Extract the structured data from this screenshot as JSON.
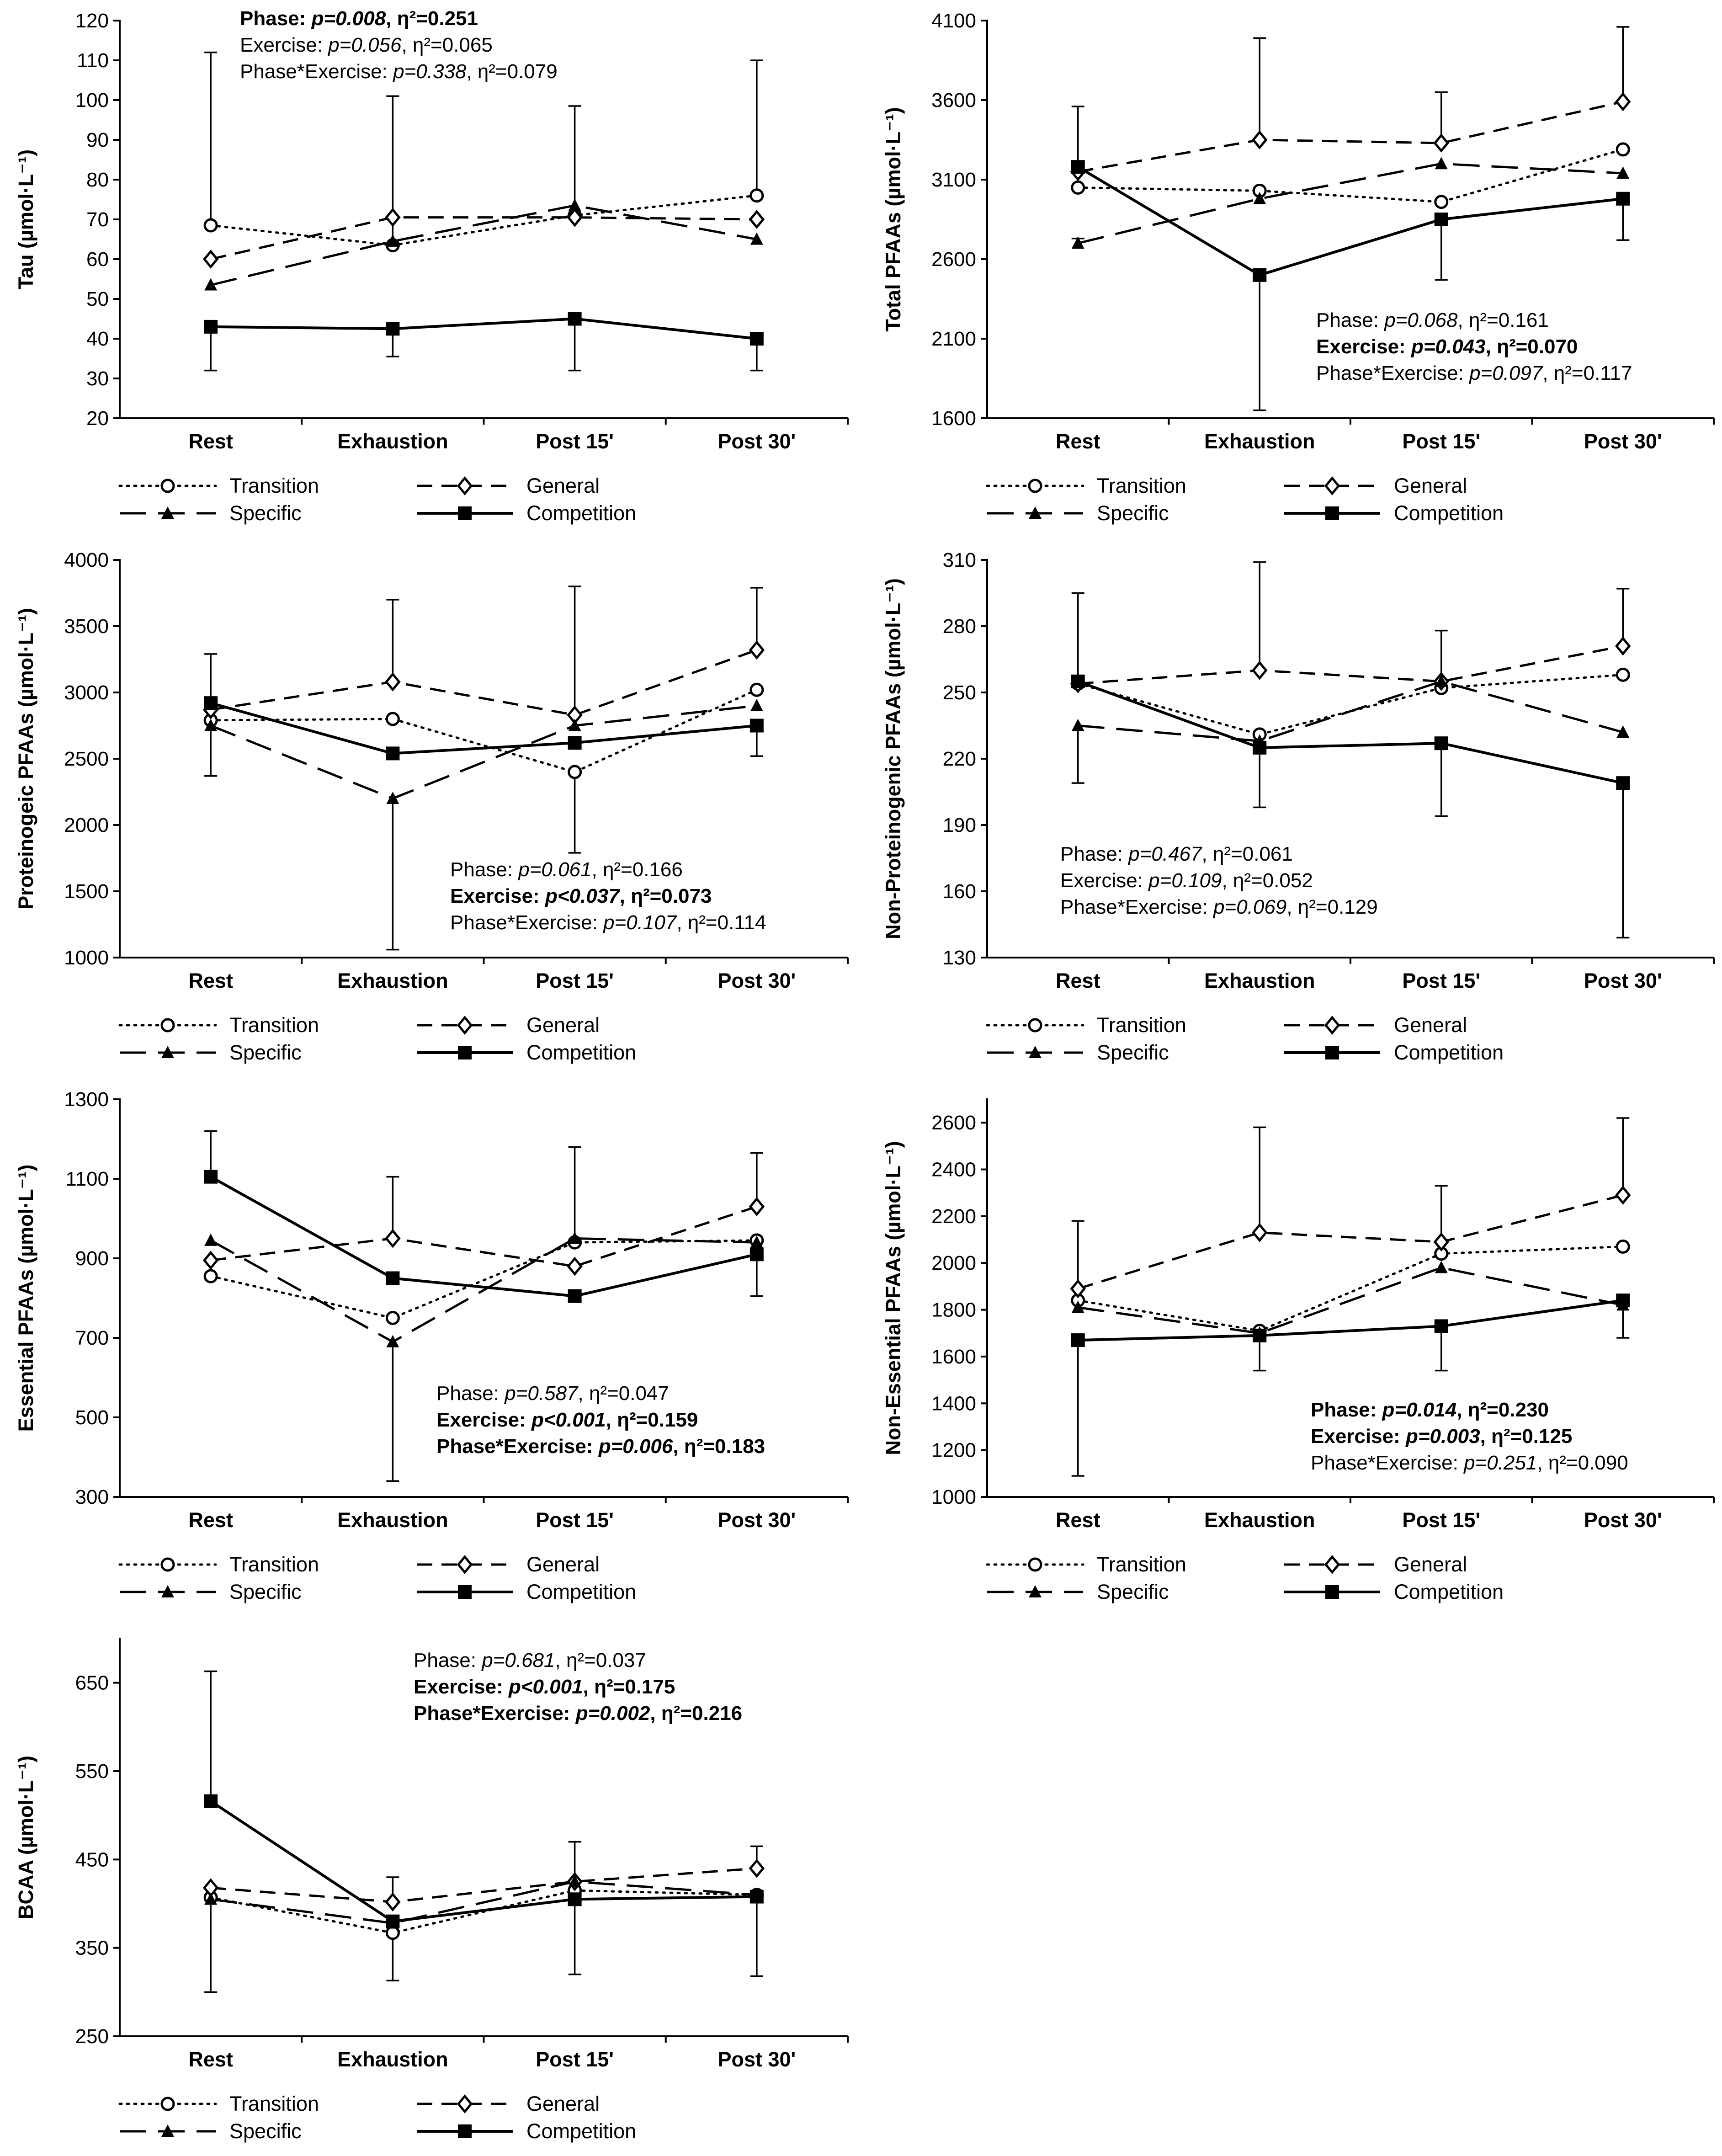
{
  "figure": {
    "categories": [
      "Rest",
      "Exhaustion",
      "Post 15'",
      "Post 30'"
    ],
    "legend": [
      {
        "key": "transition",
        "label": "Transition"
      },
      {
        "key": "general",
        "label": "General"
      },
      {
        "key": "specific",
        "label": "Specific"
      },
      {
        "key": "competition",
        "label": "Competition"
      }
    ],
    "colors": {
      "ink": "#000000",
      "background": "#ffffff"
    }
  },
  "chart_data": [
    {
      "id": "tau",
      "type": "line",
      "ylabel": "Tau (µmol·L⁻¹)",
      "ylim": [
        20,
        120
      ],
      "yticks": [
        20,
        30,
        40,
        50,
        60,
        70,
        80,
        90,
        100,
        110,
        120
      ],
      "categories": [
        "Rest",
        "Exhaustion",
        "Post 15'",
        "Post 30'"
      ],
      "series": [
        {
          "name": "Transition",
          "values": [
            68.5,
            63.5,
            71,
            76
          ]
        },
        {
          "name": "General",
          "values": [
            60,
            70.5,
            70.5,
            70
          ]
        },
        {
          "name": "Specific",
          "values": [
            53.5,
            64.5,
            73.5,
            65
          ]
        },
        {
          "name": "Competition",
          "values": [
            43,
            42.5,
            45,
            40
          ]
        }
      ],
      "error_bars": [
        {
          "series": "Transition",
          "index": 0,
          "value": 112
        },
        {
          "series": "Transition",
          "index": 1,
          "value": 101
        },
        {
          "series": "Transition",
          "index": 2,
          "value": 98.5
        },
        {
          "series": "Transition",
          "index": 3,
          "value": 110
        },
        {
          "series": "Competition",
          "index": 0,
          "value": 32
        },
        {
          "series": "Competition",
          "index": 1,
          "value": 35.5
        },
        {
          "series": "Competition",
          "index": 2,
          "value": 32
        },
        {
          "series": "Competition",
          "index": 3,
          "value": 32
        }
      ],
      "stats": [
        {
          "label": "Phase: ",
          "p": "p=0.008",
          "eta": ", η²=0.251",
          "bold": true
        },
        {
          "label": "Exercise: ",
          "p": "p=0.056",
          "eta": ", η²=0.065",
          "bold": false
        },
        {
          "label": "Phase*Exercise: ",
          "p": "p=0.338",
          "eta": ", η²=0.079",
          "bold": false
        }
      ]
    },
    {
      "id": "total",
      "type": "line",
      "ylabel": "Total PFAAs (µmol·L⁻¹)",
      "ylim": [
        1600,
        4100
      ],
      "yticks": [
        1600,
        2100,
        2600,
        3100,
        3600,
        4100
      ],
      "categories": [
        "Rest",
        "Exhaustion",
        "Post 15'",
        "Post 30'"
      ],
      "series": [
        {
          "name": "Transition",
          "values": [
            3050,
            3030,
            2960,
            3290
          ]
        },
        {
          "name": "General",
          "values": [
            3150,
            3350,
            3330,
            3590
          ]
        },
        {
          "name": "Specific",
          "values": [
            2700,
            2980,
            3200,
            3140
          ]
        },
        {
          "name": "Competition",
          "values": [
            3180,
            2500,
            2850,
            2980
          ]
        }
      ],
      "error_bars": [
        {
          "series": "Competition",
          "index": 0,
          "value": 3560
        },
        {
          "series": "General",
          "index": 1,
          "value": 3990
        },
        {
          "series": "General",
          "index": 2,
          "value": 3650
        },
        {
          "series": "General",
          "index": 3,
          "value": 4060
        },
        {
          "series": "Specific",
          "index": 0,
          "value": 2730
        },
        {
          "series": "Competition",
          "index": 1,
          "value": 1650
        },
        {
          "series": "Competition",
          "index": 2,
          "value": 2470
        },
        {
          "series": "Competition",
          "index": 3,
          "value": 2720
        }
      ],
      "stats": [
        {
          "label": "Phase: ",
          "p": "p=0.068",
          "eta": ", η²=0.161",
          "bold": false
        },
        {
          "label": "Exercise: ",
          "p": "p=0.043",
          "eta": ", η²=0.070",
          "bold": true
        },
        {
          "label": "Phase*Exercise: ",
          "p": "p=0.097",
          "eta": ", η²=0.117",
          "bold": false
        }
      ]
    },
    {
      "id": "proteinogenic",
      "type": "line",
      "ylabel": "Proteinogeic PFAAs (µmol·L⁻¹)",
      "ylim": [
        1000,
        4000
      ],
      "yticks": [
        1000,
        1500,
        2000,
        2500,
        3000,
        3500,
        4000
      ],
      "categories": [
        "Rest",
        "Exhaustion",
        "Post 15'",
        "Post 30'"
      ],
      "series": [
        {
          "name": "Transition",
          "values": [
            2790,
            2800,
            2400,
            3020
          ]
        },
        {
          "name": "General",
          "values": [
            2870,
            3080,
            2830,
            3320
          ]
        },
        {
          "name": "Specific",
          "values": [
            2750,
            2200,
            2750,
            2900
          ]
        },
        {
          "name": "Competition",
          "values": [
            2920,
            2540,
            2620,
            2750
          ]
        }
      ],
      "error_bars": [
        {
          "series": "Competition",
          "index": 0,
          "value": 3290
        },
        {
          "series": "General",
          "index": 1,
          "value": 3700
        },
        {
          "series": "General",
          "index": 2,
          "value": 3800
        },
        {
          "series": "General",
          "index": 3,
          "value": 3790
        },
        {
          "series": "Competition",
          "index": 0,
          "value": 2370
        },
        {
          "series": "Specific",
          "index": 1,
          "value": 1060
        },
        {
          "series": "Transition",
          "index": 2,
          "value": 1790
        },
        {
          "series": "Competition",
          "index": 3,
          "value": 2520
        }
      ],
      "stats": [
        {
          "label": "Phase: ",
          "p": "p=0.061",
          "eta": ", η²=0.166",
          "bold": false
        },
        {
          "label": "Exercise: ",
          "p": "p<0.037",
          "eta": ", η²=0.073",
          "bold": true
        },
        {
          "label": "Phase*Exercise: ",
          "p": "p=0.107",
          "eta": ", η²=0.114",
          "bold": false
        }
      ]
    },
    {
      "id": "nonproteinogenic",
      "type": "line",
      "ylabel": "Non-Proteinogenic PFAAs (µmol·L⁻¹)",
      "ylim": [
        130,
        310
      ],
      "yticks": [
        130,
        160,
        190,
        220,
        250,
        280,
        310
      ],
      "categories": [
        "Rest",
        "Exhaustion",
        "Post 15'",
        "Post 30'"
      ],
      "series": [
        {
          "name": "Transition",
          "values": [
            254,
            231,
            252,
            258
          ]
        },
        {
          "name": "General",
          "values": [
            254,
            260,
            255,
            271
          ]
        },
        {
          "name": "Specific",
          "values": [
            235,
            228,
            255,
            232
          ]
        },
        {
          "name": "Competition",
          "values": [
            255,
            225,
            227,
            209
          ]
        }
      ],
      "error_bars": [
        {
          "series": "Competition",
          "index": 0,
          "value": 295
        },
        {
          "series": "General",
          "index": 1,
          "value": 309
        },
        {
          "series": "Specific",
          "index": 2,
          "value": 278
        },
        {
          "series": "General",
          "index": 3,
          "value": 297
        },
        {
          "series": "Specific",
          "index": 0,
          "value": 209
        },
        {
          "series": "Competition",
          "index": 1,
          "value": 198
        },
        {
          "series": "Competition",
          "index": 2,
          "value": 194
        },
        {
          "series": "Competition",
          "index": 3,
          "value": 139
        }
      ],
      "stats": [
        {
          "label": "Phase: ",
          "p": "p=0.467",
          "eta": ", η²=0.061",
          "bold": false
        },
        {
          "label": "Exercise: ",
          "p": "p=0.109",
          "eta": ", η²=0.052",
          "bold": false
        },
        {
          "label": "Phase*Exercise: ",
          "p": "p=0.069",
          "eta": ", η²=0.129",
          "bold": false
        }
      ]
    },
    {
      "id": "essential",
      "type": "line",
      "ylabel": "Essential PFAAs (µmol·L⁻¹)",
      "ylim": [
        300,
        1300
      ],
      "yticks": [
        300,
        500,
        700,
        900,
        1100,
        1300
      ],
      "categories": [
        "Rest",
        "Exhaustion",
        "Post 15'",
        "Post 30'"
      ],
      "series": [
        {
          "name": "Transition",
          "values": [
            855,
            750,
            940,
            945
          ]
        },
        {
          "name": "General",
          "values": [
            895,
            950,
            880,
            1030
          ]
        },
        {
          "name": "Specific",
          "values": [
            945,
            690,
            950,
            940
          ]
        },
        {
          "name": "Competition",
          "values": [
            1105,
            850,
            805,
            910
          ]
        }
      ],
      "error_bars": [
        {
          "series": "Competition",
          "index": 0,
          "value": 1220
        },
        {
          "series": "General",
          "index": 1,
          "value": 1105
        },
        {
          "series": "Specific",
          "index": 2,
          "value": 1180
        },
        {
          "series": "General",
          "index": 3,
          "value": 1165
        },
        {
          "series": "Specific",
          "index": 1,
          "value": 340
        },
        {
          "series": "Competition",
          "index": 3,
          "value": 805
        }
      ],
      "stats": [
        {
          "label": "Phase: ",
          "p": "p=0.587",
          "eta": ", η²=0.047",
          "bold": false
        },
        {
          "label": "Exercise: ",
          "p": "p<0.001",
          "eta": ", η²=0.159",
          "bold": true
        },
        {
          "label": "Phase*Exercise: ",
          "p": "p=0.006",
          "eta": ", η²=0.183",
          "bold": true
        }
      ]
    },
    {
      "id": "nonessential",
      "type": "line",
      "ylabel": "Non-Essential PFAAs (µmol·L⁻¹)",
      "ylim": [
        1000,
        2700
      ],
      "yticks": [
        1000,
        1200,
        1400,
        1600,
        1800,
        2000,
        2200,
        2400,
        2600
      ],
      "categories": [
        "Rest",
        "Exhaustion",
        "Post 15'",
        "Post 30'"
      ],
      "series": [
        {
          "name": "Transition",
          "values": [
            1840,
            1710,
            2040,
            2070
          ]
        },
        {
          "name": "General",
          "values": [
            1890,
            2130,
            2090,
            2290
          ]
        },
        {
          "name": "Specific",
          "values": [
            1810,
            1700,
            1980,
            1820
          ]
        },
        {
          "name": "Competition",
          "values": [
            1670,
            1690,
            1730,
            1840
          ]
        }
      ],
      "error_bars": [
        {
          "series": "General",
          "index": 0,
          "value": 2180
        },
        {
          "series": "General",
          "index": 1,
          "value": 2580
        },
        {
          "series": "General",
          "index": 2,
          "value": 2330
        },
        {
          "series": "General",
          "index": 3,
          "value": 2620
        },
        {
          "series": "Competition",
          "index": 0,
          "value": 1090
        },
        {
          "series": "Competition",
          "index": 1,
          "value": 1540
        },
        {
          "series": "Competition",
          "index": 2,
          "value": 1540
        },
        {
          "series": "Competition",
          "index": 3,
          "value": 1680
        }
      ],
      "stats": [
        {
          "label": "Phase: ",
          "p": "p=0.014",
          "eta": ", η²=0.230",
          "bold": true
        },
        {
          "label": "Exercise: ",
          "p": "p=0.003",
          "eta": ", η²=0.125",
          "bold": true
        },
        {
          "label": "Phase*Exercise: ",
          "p": "p=0.251",
          "eta": ", η²=0.090",
          "bold": false
        }
      ]
    },
    {
      "id": "bcaa",
      "type": "line",
      "ylabel": "BCAA (µmol·L⁻¹)",
      "ylim": [
        250,
        700
      ],
      "yticks": [
        250,
        350,
        450,
        550,
        650
      ],
      "categories": [
        "Rest",
        "Exhaustion",
        "Post 15'",
        "Post 30'"
      ],
      "series": [
        {
          "name": "Transition",
          "values": [
            407,
            367,
            415,
            410
          ]
        },
        {
          "name": "General",
          "values": [
            418,
            402,
            425,
            440
          ]
        },
        {
          "name": "Specific",
          "values": [
            405,
            378,
            425,
            410
          ]
        },
        {
          "name": "Competition",
          "values": [
            516,
            380,
            405,
            408
          ]
        }
      ],
      "error_bars": [
        {
          "series": "Competition",
          "index": 0,
          "value": 663
        },
        {
          "series": "General",
          "index": 1,
          "value": 430
        },
        {
          "series": "Specific",
          "index": 2,
          "value": 470
        },
        {
          "series": "General",
          "index": 3,
          "value": 465
        },
        {
          "series": "Specific",
          "index": 0,
          "value": 300
        },
        {
          "series": "Transition",
          "index": 1,
          "value": 313
        },
        {
          "series": "Competition",
          "index": 2,
          "value": 320
        },
        {
          "series": "Competition",
          "index": 3,
          "value": 318
        }
      ],
      "stats": [
        {
          "label": "Phase: ",
          "p": "p=0.681",
          "eta": ", η²=0.037",
          "bold": false
        },
        {
          "label": "Exercise: ",
          "p": "p<0.001",
          "eta": ", η²=0.175",
          "bold": true
        },
        {
          "label": "Phase*Exercise: ",
          "p": "p=0.002",
          "eta": ", η²=0.216",
          "bold": true
        }
      ]
    }
  ]
}
